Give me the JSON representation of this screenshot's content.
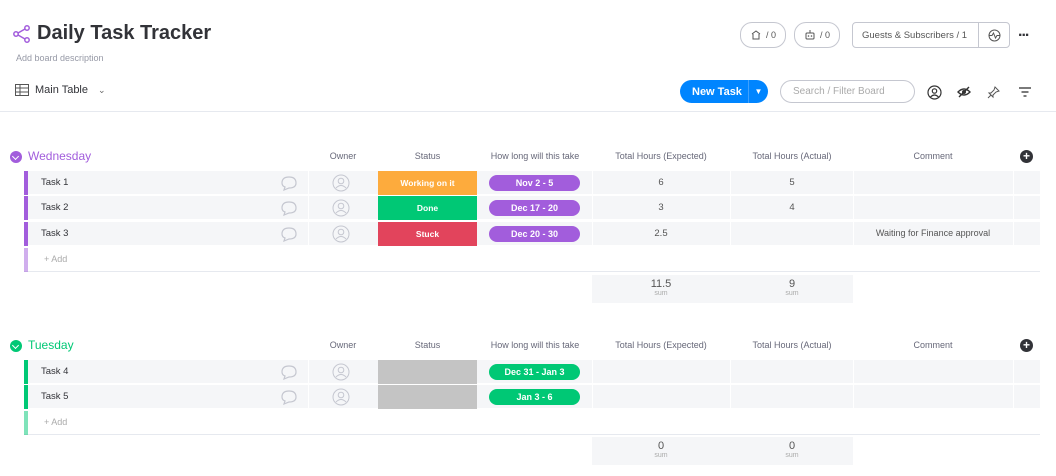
{
  "board": {
    "title": "Daily Task Tracker",
    "description": "Add board description"
  },
  "header": {
    "activity_count": "/ 0",
    "integrations_count": "/ 0",
    "guests_label": "Guests & Subscribers / 1",
    "more_label": "..."
  },
  "toolbar": {
    "view_label": "Main Table",
    "new_task_label": "New Task",
    "search_placeholder": "Search / Filter Board"
  },
  "columns": {
    "owner": "Owner",
    "status": "Status",
    "timeline": "How long will this take",
    "hours_expected": "Total Hours (Expected)",
    "hours_actual": "Total Hours (Actual)",
    "comment": "Comment"
  },
  "groups": [
    {
      "title": "Wednesday",
      "color": "#a25ddc",
      "rows": [
        {
          "name": "Task 1",
          "status": "Working on it",
          "status_color": "#fdab3d",
          "timeline": "Nov 2 - 5",
          "expected": "6",
          "actual": "5",
          "comment": ""
        },
        {
          "name": "Task 2",
          "status": "Done",
          "status_color": "#00c875",
          "timeline": "Dec 17 - 20",
          "expected": "3",
          "actual": "4",
          "comment": ""
        },
        {
          "name": "Task 3",
          "status": "Stuck",
          "status_color": "#e2445c",
          "timeline": "Dec 20 - 30",
          "expected": "2.5",
          "actual": "",
          "comment": "Waiting for Finance approval"
        }
      ],
      "add_label": "+ Add",
      "sum_expected": "11.5",
      "sum_actual": "9",
      "sum_label": "sum"
    },
    {
      "title": "Tuesday",
      "color": "#00c875",
      "rows": [
        {
          "name": "Task 4",
          "status": "",
          "status_color": "#c4c4c4",
          "timeline": "Dec 31 - Jan 3",
          "expected": "",
          "actual": "",
          "comment": ""
        },
        {
          "name": "Task 5",
          "status": "",
          "status_color": "#c4c4c4",
          "timeline": "Jan 3 - 6",
          "expected": "",
          "actual": "",
          "comment": ""
        }
      ],
      "add_label": "+ Add",
      "sum_expected": "0",
      "sum_actual": "0",
      "sum_label": "sum"
    }
  ]
}
